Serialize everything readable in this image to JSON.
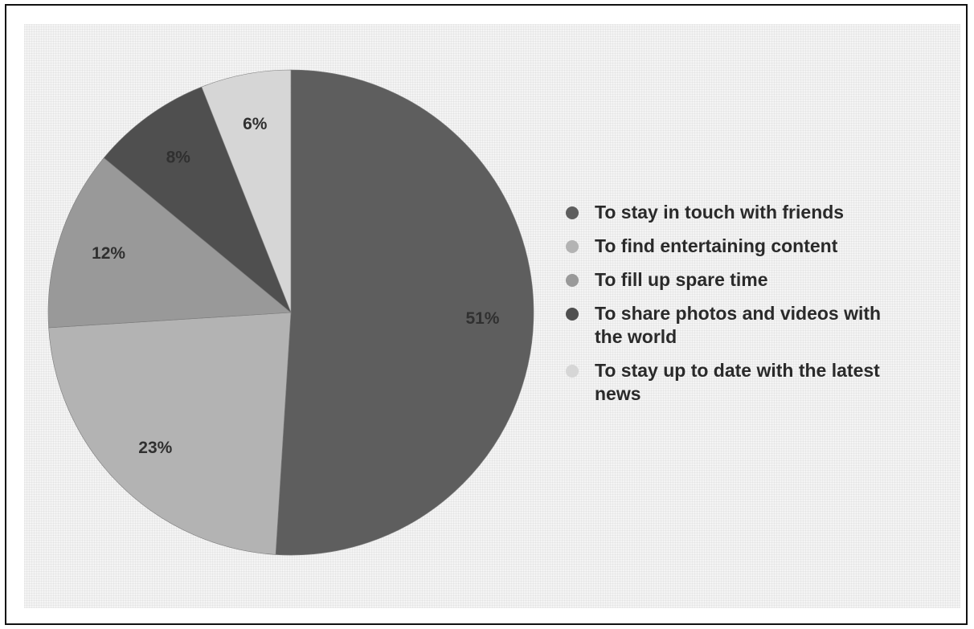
{
  "chart_data": {
    "type": "pie",
    "categories": [
      "To stay in touch with friends",
      "To find entertaining content",
      "To fill up spare time",
      "To share photos and videos with the world",
      "To stay up to date with the latest news"
    ],
    "values": [
      51,
      23,
      12,
      8,
      6
    ],
    "labels": [
      "51%",
      "23%",
      "12%",
      "8%",
      "6%"
    ],
    "colors": [
      "#5e5e5e",
      "#b3b3b3",
      "#999999",
      "#4f4f4f",
      "#d6d6d6"
    ],
    "legend_position": "right",
    "start_angle": "top",
    "direction": "clockwise"
  },
  "legend": {
    "items": [
      {
        "label": "To stay in touch with friends",
        "color": "#5e5e5e"
      },
      {
        "label": "To find entertaining content",
        "color": "#b3b3b3"
      },
      {
        "label": "To fill up spare time",
        "color": "#999999"
      },
      {
        "label": "To share photos and videos with the world",
        "color": "#4f4f4f"
      },
      {
        "label": "To stay up to date with the latest news",
        "color": "#d6d6d6"
      }
    ]
  }
}
